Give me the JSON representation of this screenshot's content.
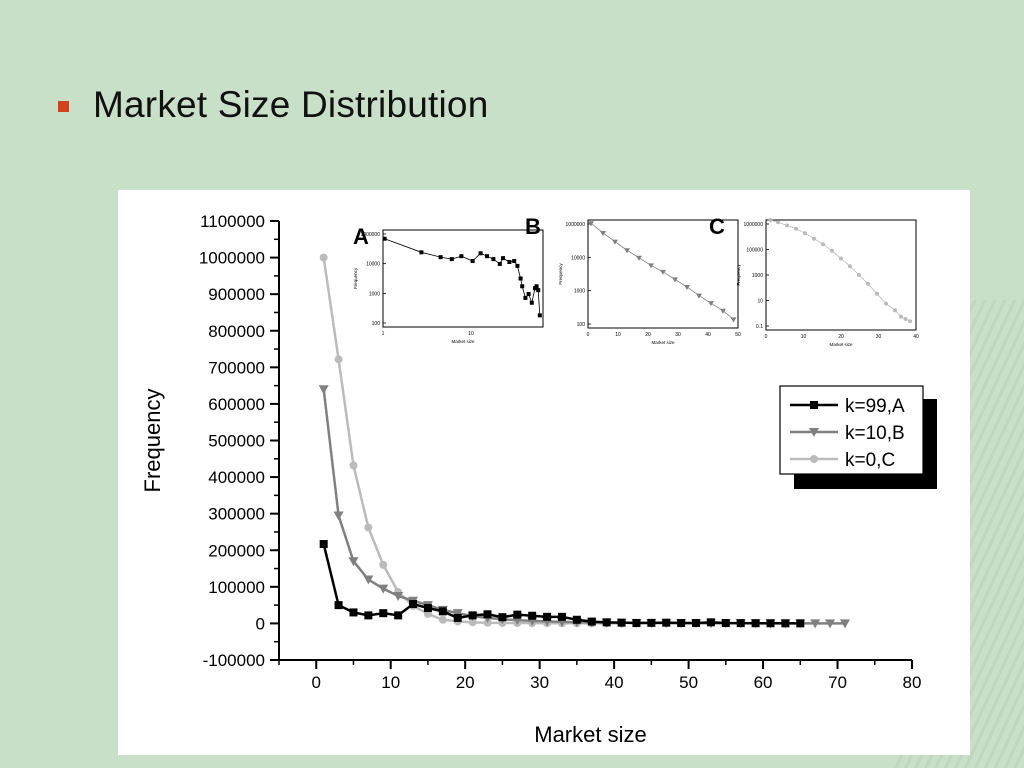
{
  "slide": {
    "title": "Market Size Distribution",
    "bullet_color": "#d4401c",
    "background_color": "#c8dfc8"
  },
  "chart_data": [
    {
      "type": "line",
      "role": "main",
      "xlabel": "Market size",
      "ylabel": "Frequency",
      "xlim": [
        -5,
        80
      ],
      "ylim": [
        -100000,
        1100000
      ],
      "xticks": [
        0,
        10,
        20,
        30,
        40,
        50,
        60,
        70,
        80
      ],
      "yticks": [
        -100000,
        0,
        100000,
        200000,
        300000,
        400000,
        500000,
        600000,
        700000,
        800000,
        900000,
        1000000,
        1100000
      ],
      "legend_position": "right",
      "series": [
        {
          "name": "k=99,A",
          "color": "#000000",
          "marker": "square",
          "x": [
            1,
            3,
            5,
            7,
            9,
            11,
            13,
            15,
            17,
            19,
            21,
            23,
            25,
            27,
            29,
            31,
            33,
            35,
            37,
            39,
            41,
            43,
            45,
            47,
            49,
            51,
            53,
            55,
            57,
            59,
            61,
            63,
            65
          ],
          "y": [
            217000,
            50000,
            30000,
            22000,
            28000,
            22000,
            53000,
            42000,
            33000,
            15000,
            22000,
            25000,
            17000,
            24000,
            21000,
            18000,
            18000,
            10000,
            5000,
            3000,
            2000,
            1000,
            1500,
            2000,
            1000,
            1200,
            3000,
            1000,
            800,
            600,
            500,
            300,
            200
          ]
        },
        {
          "name": "k=10,B",
          "color": "#808080",
          "marker": "triangle-down",
          "x": [
            1,
            3,
            5,
            7,
            9,
            11,
            13,
            15,
            17,
            19,
            21,
            23,
            25,
            27,
            29,
            31,
            33,
            35,
            37,
            39,
            41,
            43,
            45,
            47,
            49,
            51,
            53,
            55,
            57,
            59,
            61,
            63,
            65,
            67,
            69,
            71
          ],
          "y": [
            640000,
            295000,
            170000,
            120000,
            95000,
            75000,
            62000,
            50000,
            37000,
            28000,
            20000,
            15000,
            11000,
            9000,
            7000,
            5500,
            4200,
            3500,
            2800,
            2200,
            1700,
            1400,
            1100,
            900,
            700,
            600,
            500,
            400,
            300,
            300,
            200,
            200,
            150,
            100,
            100,
            100
          ]
        },
        {
          "name": "k=0,C",
          "color": "#bbbbbb",
          "marker": "circle",
          "x": [
            1,
            3,
            5,
            7,
            9,
            11,
            13,
            15,
            17,
            19,
            21,
            23,
            25,
            27,
            29,
            31,
            33,
            35,
            37,
            39,
            41
          ],
          "y": [
            1000000,
            722000,
            432000,
            262000,
            160000,
            86000,
            48000,
            26000,
            10000,
            5500,
            3000,
            1800,
            1200,
            1000,
            800,
            600,
            400,
            300,
            200,
            100,
            50
          ]
        }
      ]
    },
    {
      "type": "line",
      "role": "inset",
      "label": "A",
      "xlabel": "Market size",
      "ylabel": "Frequency",
      "yticks": [
        "1000000",
        "10000",
        "1000",
        "100"
      ],
      "xticks": [
        "1",
        "10"
      ]
    },
    {
      "type": "line",
      "role": "inset",
      "label": "B",
      "xlabel": "Market size",
      "ylabel": "Frequency",
      "yticks": [
        "1000000",
        "10000",
        "1000",
        "100"
      ],
      "xticks": [
        "0",
        "10",
        "20",
        "30",
        "40",
        "50"
      ]
    },
    {
      "type": "line",
      "role": "inset",
      "label": "C",
      "xlabel": "Market size",
      "ylabel": "Frequency",
      "yticks": [
        "1000000",
        "100000",
        "1000",
        "10",
        "0.1"
      ],
      "xticks": [
        "0",
        "10",
        "20",
        "30",
        "40"
      ]
    }
  ]
}
